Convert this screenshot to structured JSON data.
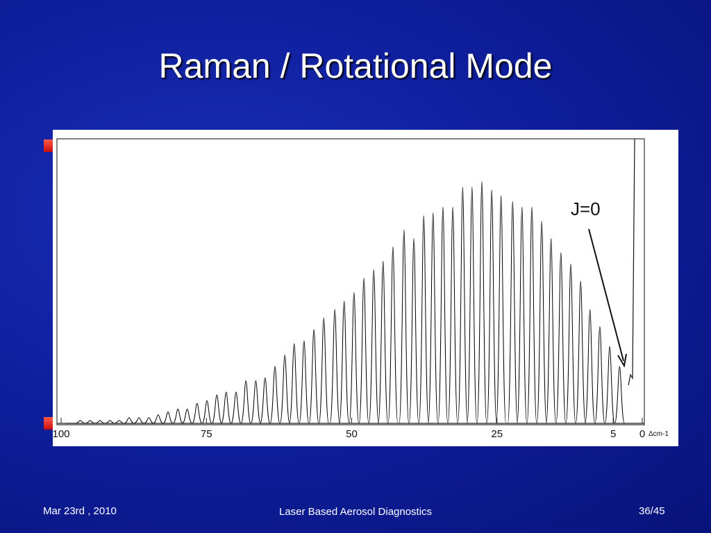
{
  "header": {
    "title": "Raman / Rotational Mode"
  },
  "chart_data": {
    "type": "line",
    "x": [
      3.9,
      5.6,
      7.3,
      9.0,
      10.6,
      12.3,
      14.0,
      15.7,
      17.3,
      19.0,
      20.7,
      22.3,
      24.3,
      25.9,
      27.6,
      29.3,
      30.9,
      32.6,
      34.3,
      36.0,
      37.6,
      39.3,
      41.0,
      42.9,
      44.6,
      46.2,
      47.9,
      49.6,
      51.3,
      52.9,
      54.8,
      56.5,
      58.2,
      59.9,
      61.5,
      63.2,
      64.9,
      66.5,
      68.2,
      69.9,
      71.6,
      73.2,
      74.9,
      76.6,
      78.3,
      79.9,
      81.6,
      83.3,
      84.9,
      86.6,
      88.3,
      90.0,
      91.6,
      93.3,
      95.0,
      96.7,
      98.3
    ],
    "values": [
      20,
      27,
      34,
      40,
      50,
      56,
      60,
      65,
      71,
      76,
      76,
      78,
      80,
      82,
      85,
      83,
      83,
      76,
      76,
      74,
      73,
      65,
      68,
      62,
      57,
      54,
      51,
      46,
      43,
      40,
      37,
      33,
      29,
      28,
      24,
      20,
      16,
      15,
      15,
      11,
      11,
      10,
      8,
      7,
      5,
      5,
      4,
      3,
      2,
      2,
      2,
      1,
      1,
      1,
      1,
      1,
      0
    ],
    "color": "#000000",
    "xlim": [
      100,
      0
    ],
    "xticks": [
      100,
      75,
      50,
      25,
      5,
      0
    ],
    "ylim": [
      0,
      100
    ],
    "x_label": "Δcm-1",
    "annotation": "J=0"
  },
  "footer": {
    "date": "Mar 23rd , 2010",
    "center": "Laser Based Aerosol Diagnostics",
    "page": "36/45"
  }
}
